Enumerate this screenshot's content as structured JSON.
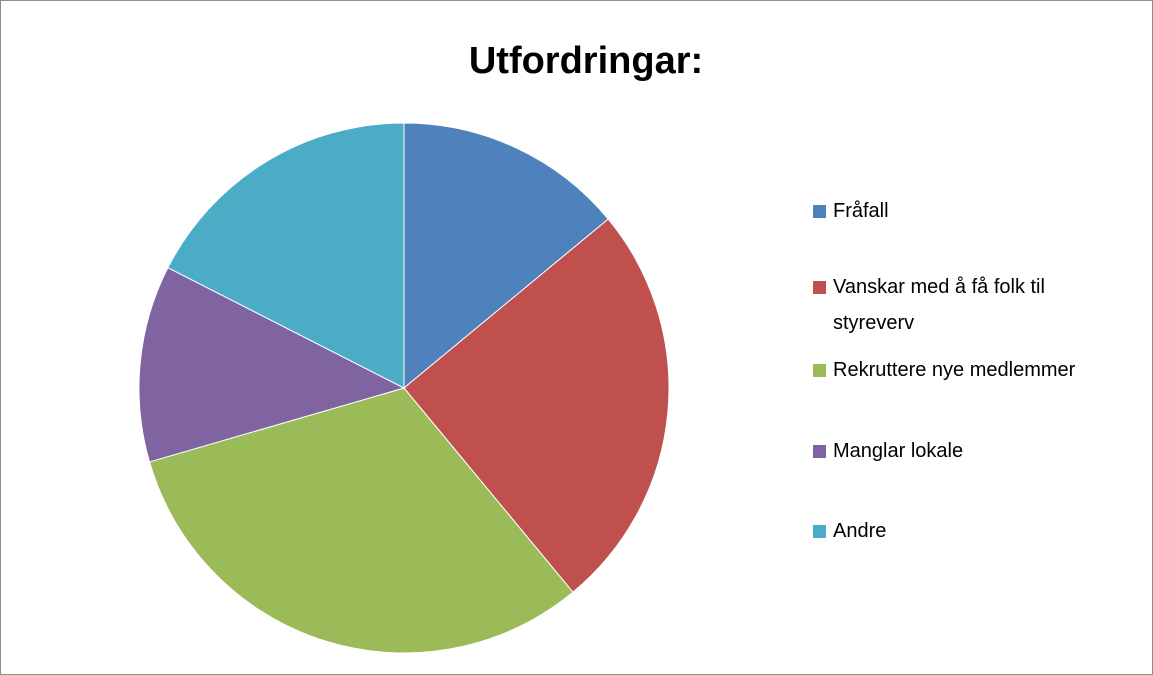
{
  "chart_data": {
    "type": "pie",
    "title": "Utfordringar:",
    "categories": [
      "Fråfall",
      "Vanskar med å få folk til styreverv",
      "Rekruttere nye medlemmer",
      "Manglar lokale",
      "Andre"
    ],
    "values": [
      14,
      25,
      31.5,
      12,
      17.5
    ],
    "colors": [
      "#4f81bd",
      "#c0504d",
      "#9bbb59",
      "#8064a2",
      "#4bacc6"
    ],
    "legend": "right"
  }
}
